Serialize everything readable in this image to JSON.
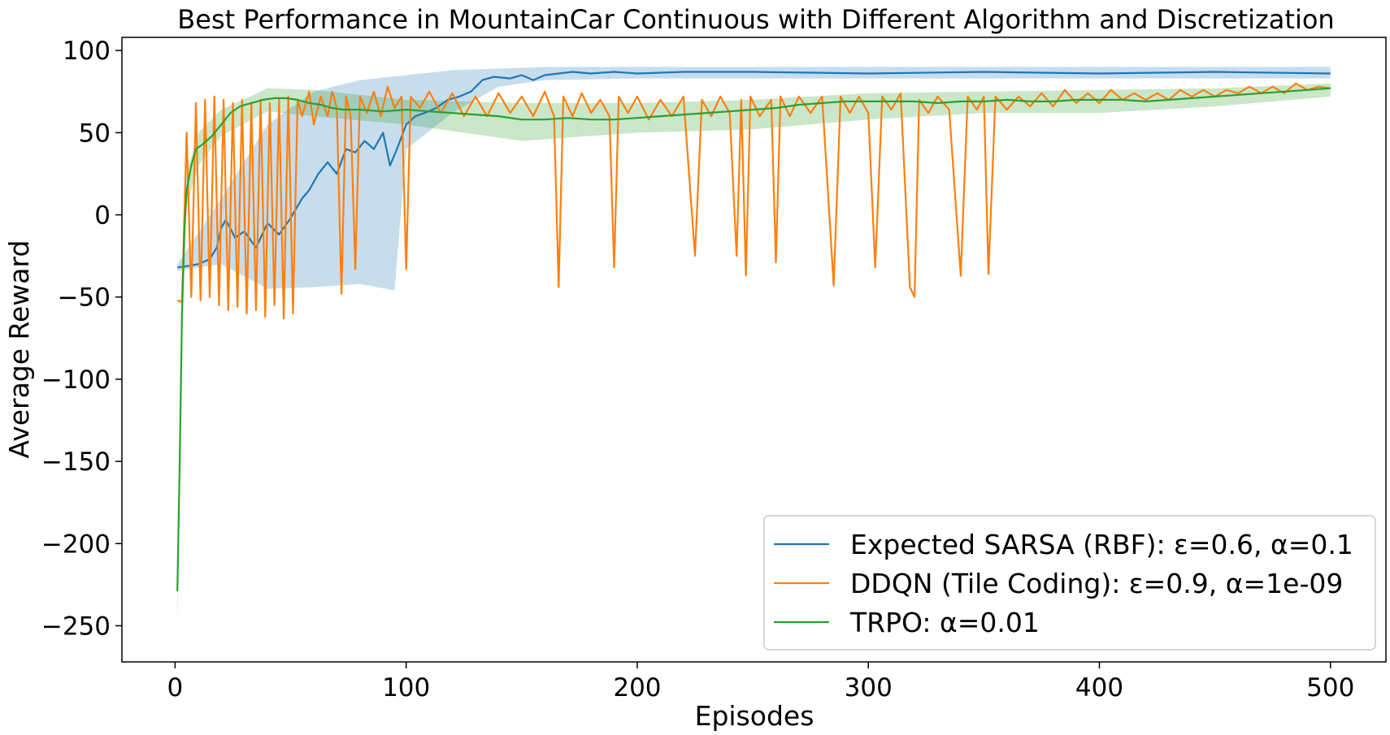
{
  "chart_data": {
    "type": "line",
    "title": "Best Performance in MountainCar Continuous with Different Algorithm and Discretization",
    "xlabel": "Episodes",
    "ylabel": "Average Reward",
    "xlim": [
      -23,
      524
    ],
    "ylim": [
      -272,
      108
    ],
    "xticks": [
      0,
      100,
      200,
      300,
      400,
      500
    ],
    "yticks": [
      100,
      50,
      0,
      -50,
      -100,
      -150,
      -200,
      -250
    ],
    "grid": false,
    "legend_position": "lower-right",
    "series": [
      {
        "name": "Expected SARSA (RBF): ε=0.6, α=0.1",
        "color": "#1f77b4",
        "band": true,
        "points": [
          [
            1,
            -32
          ],
          [
            6,
            -31
          ],
          [
            10,
            -30
          ],
          [
            15,
            -27
          ],
          [
            18,
            -20
          ],
          [
            20,
            -8
          ],
          [
            22,
            -3
          ],
          [
            26,
            -14
          ],
          [
            30,
            -10
          ],
          [
            35,
            -20
          ],
          [
            40,
            -5
          ],
          [
            45,
            -12
          ],
          [
            50,
            -2
          ],
          [
            55,
            10
          ],
          [
            58,
            15
          ],
          [
            62,
            25
          ],
          [
            66,
            32
          ],
          [
            70,
            25
          ],
          [
            74,
            40
          ],
          [
            78,
            38
          ],
          [
            82,
            45
          ],
          [
            86,
            40
          ],
          [
            90,
            50
          ],
          [
            93,
            30
          ],
          [
            96,
            40
          ],
          [
            100,
            55
          ],
          [
            104,
            60
          ],
          [
            108,
            62
          ],
          [
            113,
            65
          ],
          [
            118,
            70
          ],
          [
            123,
            72
          ],
          [
            128,
            75
          ],
          [
            133,
            82
          ],
          [
            138,
            84
          ],
          [
            145,
            83
          ],
          [
            150,
            85
          ],
          [
            155,
            82
          ],
          [
            160,
            85
          ],
          [
            166,
            86
          ],
          [
            172,
            87
          ],
          [
            180,
            86
          ],
          [
            190,
            87
          ],
          [
            200,
            86
          ],
          [
            220,
            87
          ],
          [
            250,
            87
          ],
          [
            300,
            86
          ],
          [
            350,
            87
          ],
          [
            400,
            86
          ],
          [
            450,
            87
          ],
          [
            500,
            86
          ]
        ],
        "band_upper": [
          [
            1,
            -30
          ],
          [
            20,
            10
          ],
          [
            40,
            55
          ],
          [
            60,
            75
          ],
          [
            80,
            82
          ],
          [
            100,
            85
          ],
          [
            120,
            88
          ],
          [
            140,
            89
          ],
          [
            160,
            90
          ],
          [
            200,
            90
          ],
          [
            300,
            90
          ],
          [
            400,
            90
          ],
          [
            500,
            90
          ]
        ],
        "band_lower": [
          [
            1,
            -34
          ],
          [
            20,
            -30
          ],
          [
            40,
            -45
          ],
          [
            60,
            -44
          ],
          [
            80,
            -42
          ],
          [
            95,
            -46
          ],
          [
            100,
            40
          ],
          [
            120,
            62
          ],
          [
            140,
            78
          ],
          [
            160,
            82
          ],
          [
            200,
            83
          ],
          [
            300,
            83
          ],
          [
            400,
            83
          ],
          [
            500,
            83
          ]
        ]
      },
      {
        "name": "DDQN (Tile Coding): ε=0.9, α=1e-09",
        "color": "#ff7f0e",
        "band": false,
        "points": [
          [
            1,
            -52
          ],
          [
            3,
            -53
          ],
          [
            5,
            50
          ],
          [
            7,
            -50
          ],
          [
            9,
            68
          ],
          [
            11,
            -52
          ],
          [
            13,
            70
          ],
          [
            15,
            -50
          ],
          [
            17,
            72
          ],
          [
            19,
            -55
          ],
          [
            21,
            70
          ],
          [
            23,
            -58
          ],
          [
            25,
            68
          ],
          [
            27,
            -56
          ],
          [
            29,
            70
          ],
          [
            31,
            -60
          ],
          [
            33,
            68
          ],
          [
            35,
            -58
          ],
          [
            37,
            70
          ],
          [
            39,
            -62
          ],
          [
            41,
            68
          ],
          [
            43,
            -55
          ],
          [
            45,
            70
          ],
          [
            47,
            -63
          ],
          [
            49,
            72
          ],
          [
            51,
            -60
          ],
          [
            53,
            70
          ],
          [
            55,
            60
          ],
          [
            58,
            75
          ],
          [
            60,
            55
          ],
          [
            63,
            72
          ],
          [
            66,
            60
          ],
          [
            68,
            75
          ],
          [
            70,
            65
          ],
          [
            72,
            -48
          ],
          [
            74,
            72
          ],
          [
            76,
            60
          ],
          [
            78,
            -33
          ],
          [
            80,
            72
          ],
          [
            83,
            62
          ],
          [
            86,
            75
          ],
          [
            89,
            60
          ],
          [
            92,
            78
          ],
          [
            95,
            65
          ],
          [
            98,
            72
          ],
          [
            100,
            -33
          ],
          [
            102,
            72
          ],
          [
            106,
            65
          ],
          [
            110,
            75
          ],
          [
            115,
            62
          ],
          [
            120,
            74
          ],
          [
            125,
            60
          ],
          [
            130,
            72
          ],
          [
            135,
            60
          ],
          [
            140,
            74
          ],
          [
            145,
            62
          ],
          [
            150,
            72
          ],
          [
            155,
            60
          ],
          [
            160,
            75
          ],
          [
            164,
            60
          ],
          [
            166,
            -44
          ],
          [
            168,
            72
          ],
          [
            172,
            60
          ],
          [
            176,
            74
          ],
          [
            180,
            62
          ],
          [
            184,
            70
          ],
          [
            188,
            60
          ],
          [
            190,
            -32
          ],
          [
            192,
            72
          ],
          [
            196,
            62
          ],
          [
            200,
            72
          ],
          [
            205,
            58
          ],
          [
            210,
            70
          ],
          [
            215,
            60
          ],
          [
            220,
            72
          ],
          [
            225,
            -25
          ],
          [
            228,
            70
          ],
          [
            232,
            60
          ],
          [
            236,
            72
          ],
          [
            240,
            62
          ],
          [
            243,
            -25
          ],
          [
            245,
            70
          ],
          [
            247,
            -37
          ],
          [
            249,
            72
          ],
          [
            253,
            60
          ],
          [
            258,
            70
          ],
          [
            260,
            -29
          ],
          [
            262,
            72
          ],
          [
            266,
            60
          ],
          [
            270,
            72
          ],
          [
            275,
            62
          ],
          [
            280,
            72
          ],
          [
            285,
            -43
          ],
          [
            288,
            72
          ],
          [
            292,
            62
          ],
          [
            296,
            72
          ],
          [
            300,
            62
          ],
          [
            303,
            -32
          ],
          [
            306,
            72
          ],
          [
            310,
            64
          ],
          [
            314,
            74
          ],
          [
            318,
            -44
          ],
          [
            320,
            -50
          ],
          [
            322,
            70
          ],
          [
            326,
            62
          ],
          [
            330,
            72
          ],
          [
            335,
            64
          ],
          [
            340,
            -37
          ],
          [
            343,
            72
          ],
          [
            347,
            64
          ],
          [
            350,
            72
          ],
          [
            352,
            -36
          ],
          [
            355,
            72
          ],
          [
            360,
            64
          ],
          [
            365,
            72
          ],
          [
            370,
            66
          ],
          [
            375,
            74
          ],
          [
            380,
            66
          ],
          [
            385,
            76
          ],
          [
            390,
            68
          ],
          [
            395,
            74
          ],
          [
            400,
            68
          ],
          [
            405,
            76
          ],
          [
            410,
            70
          ],
          [
            415,
            74
          ],
          [
            420,
            70
          ],
          [
            425,
            74
          ],
          [
            430,
            70
          ],
          [
            435,
            76
          ],
          [
            440,
            72
          ],
          [
            445,
            76
          ],
          [
            450,
            72
          ],
          [
            455,
            76
          ],
          [
            460,
            74
          ],
          [
            465,
            78
          ],
          [
            470,
            74
          ],
          [
            475,
            78
          ],
          [
            480,
            74
          ],
          [
            485,
            80
          ],
          [
            490,
            76
          ],
          [
            495,
            78
          ],
          [
            500,
            77
          ]
        ]
      },
      {
        "name": "TRPO: α=0.01",
        "color": "#2ca02c",
        "band": true,
        "points": [
          [
            1,
            -229
          ],
          [
            2,
            -150
          ],
          [
            3,
            -60
          ],
          [
            4,
            -10
          ],
          [
            5,
            15
          ],
          [
            7,
            30
          ],
          [
            9,
            40
          ],
          [
            12,
            43
          ],
          [
            16,
            48
          ],
          [
            20,
            55
          ],
          [
            24,
            62
          ],
          [
            28,
            66
          ],
          [
            33,
            68
          ],
          [
            38,
            70
          ],
          [
            43,
            71
          ],
          [
            48,
            71
          ],
          [
            53,
            70
          ],
          [
            58,
            68
          ],
          [
            63,
            67
          ],
          [
            68,
            65
          ],
          [
            73,
            64
          ],
          [
            80,
            64
          ],
          [
            90,
            63
          ],
          [
            100,
            64
          ],
          [
            110,
            63
          ],
          [
            120,
            62
          ],
          [
            130,
            61
          ],
          [
            140,
            60
          ],
          [
            150,
            58
          ],
          [
            160,
            58
          ],
          [
            170,
            59
          ],
          [
            180,
            58
          ],
          [
            190,
            58
          ],
          [
            200,
            59
          ],
          [
            210,
            60
          ],
          [
            220,
            61
          ],
          [
            230,
            62
          ],
          [
            240,
            63
          ],
          [
            250,
            64
          ],
          [
            260,
            65
          ],
          [
            270,
            67
          ],
          [
            280,
            68
          ],
          [
            290,
            69
          ],
          [
            300,
            69
          ],
          [
            310,
            69
          ],
          [
            320,
            69
          ],
          [
            330,
            68
          ],
          [
            340,
            69
          ],
          [
            350,
            69
          ],
          [
            360,
            70
          ],
          [
            370,
            69
          ],
          [
            380,
            69
          ],
          [
            390,
            70
          ],
          [
            400,
            70
          ],
          [
            410,
            70
          ],
          [
            420,
            69
          ],
          [
            430,
            70
          ],
          [
            440,
            71
          ],
          [
            450,
            72
          ],
          [
            460,
            73
          ],
          [
            470,
            74
          ],
          [
            480,
            75
          ],
          [
            490,
            76
          ],
          [
            500,
            77
          ]
        ],
        "band_upper": [
          [
            1,
            -210
          ],
          [
            3,
            -40
          ],
          [
            5,
            25
          ],
          [
            10,
            50
          ],
          [
            20,
            64
          ],
          [
            40,
            77
          ],
          [
            60,
            76
          ],
          [
            100,
            70
          ],
          [
            150,
            68
          ],
          [
            200,
            68
          ],
          [
            250,
            70
          ],
          [
            300,
            74
          ],
          [
            350,
            75
          ],
          [
            400,
            76
          ],
          [
            450,
            77
          ],
          [
            500,
            80
          ]
        ],
        "band_lower": [
          [
            1,
            -250
          ],
          [
            3,
            -80
          ],
          [
            5,
            5
          ],
          [
            10,
            30
          ],
          [
            20,
            48
          ],
          [
            40,
            63
          ],
          [
            60,
            60
          ],
          [
            100,
            55
          ],
          [
            150,
            45
          ],
          [
            200,
            50
          ],
          [
            250,
            52
          ],
          [
            300,
            58
          ],
          [
            350,
            62
          ],
          [
            400,
            62
          ],
          [
            450,
            66
          ],
          [
            500,
            72
          ]
        ]
      }
    ]
  }
}
